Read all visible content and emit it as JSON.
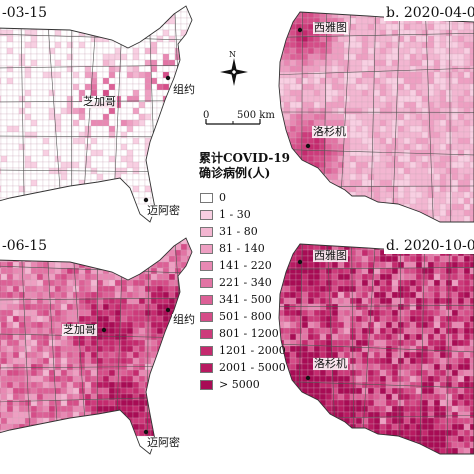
{
  "panels": [
    {
      "id": "a",
      "title": "-03-15",
      "level": 0.06
    },
    {
      "id": "b",
      "title": "b. 2020-04-0",
      "level": 0.22
    },
    {
      "id": "c",
      "title": "-06-15",
      "level": 0.55
    },
    {
      "id": "d",
      "title": "d. 2020-10-0",
      "level": 0.85
    }
  ],
  "cities": {
    "chicago": "芝加哥",
    "newyork": "组约",
    "miami": "迈阿密",
    "seattle": "西雅图",
    "la": "洛杉机"
  },
  "north_arrow": {
    "label": "N"
  },
  "scale_bar": {
    "zero": "0",
    "distance": "500 km"
  },
  "legend": {
    "title_line1": "累计COVID-19",
    "title_line2": "确诊病例(人)",
    "classes": [
      {
        "label": "0",
        "color": "#ffffff"
      },
      {
        "label": "1 - 30",
        "color": "#f8cfe2"
      },
      {
        "label": "31 - 80",
        "color": "#f3b6d1"
      },
      {
        "label": "81 - 140",
        "color": "#ee9fc2"
      },
      {
        "label": "141 - 220",
        "color": "#e889b3"
      },
      {
        "label": "221 - 340",
        "color": "#e274a4"
      },
      {
        "label": "341 - 500",
        "color": "#dc6096"
      },
      {
        "label": "501 - 800",
        "color": "#d54d88"
      },
      {
        "label": "801 - 1200",
        "color": "#cd3b7b"
      },
      {
        "label": "1201 - 2000",
        "color": "#c42a6e"
      },
      {
        "label": "2001 - 5000",
        "color": "#b81a61"
      },
      {
        "label": "> 5000",
        "color": "#a80c55"
      }
    ]
  },
  "colors": {
    "land_base": "#ffffff",
    "low": "#f6d3e3",
    "high": "#b0145c",
    "boundary": "#555555"
  }
}
